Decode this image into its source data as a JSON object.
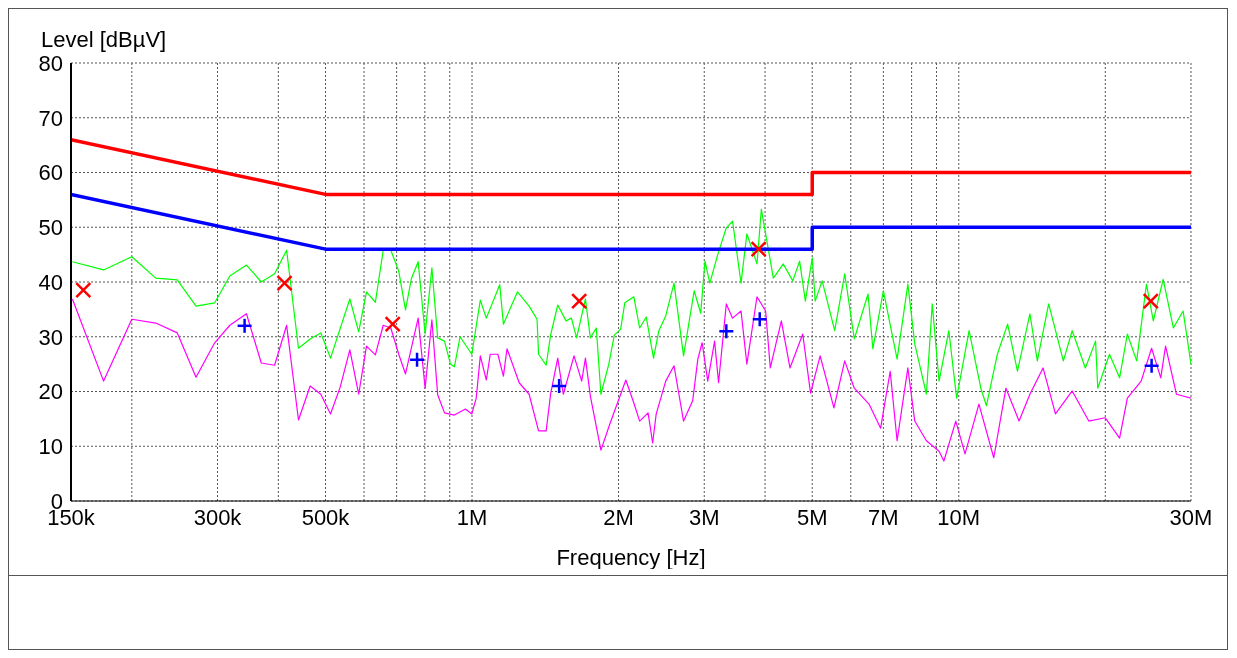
{
  "chart_data": {
    "type": "line",
    "xlabel": "Frequency [Hz]",
    "ylabel": "Level [dBµV]",
    "log": "x",
    "grid": true,
    "legend": false,
    "marker": "none",
    "line_style": "solid",
    "xlim": [
      150000,
      30000000
    ],
    "ylim": [
      0,
      80
    ],
    "yticks": [
      0,
      10,
      20,
      30,
      40,
      50,
      60,
      70,
      80
    ],
    "xticks": [
      {
        "value": 150000,
        "label": "150k"
      },
      {
        "value": 200000,
        "label": null
      },
      {
        "value": 300000,
        "label": "300k"
      },
      {
        "value": 400000,
        "label": null
      },
      {
        "value": 500000,
        "label": "500k"
      },
      {
        "value": 600000,
        "label": null
      },
      {
        "value": 700000,
        "label": null
      },
      {
        "value": 800000,
        "label": null
      },
      {
        "value": 900000,
        "label": null
      },
      {
        "value": 1000000,
        "label": "1M"
      },
      {
        "value": 2000000,
        "label": "2M"
      },
      {
        "value": 3000000,
        "label": "3M"
      },
      {
        "value": 4000000,
        "label": null
      },
      {
        "value": 5000000,
        "label": "5M"
      },
      {
        "value": 6000000,
        "label": null
      },
      {
        "value": 7000000,
        "label": "7M"
      },
      {
        "value": 8000000,
        "label": null
      },
      {
        "value": 9000000,
        "label": null
      },
      {
        "value": 10000000,
        "label": "10M"
      },
      {
        "value": 20000000,
        "label": null
      },
      {
        "value": 30000000,
        "label": "30M"
      }
    ],
    "series": [
      {
        "color": "#00ff00",
        "x": [
          151000,
          175000,
          200000,
          224000,
          248000,
          271000,
          296000,
          318000,
          344000,
          369000,
          393000,
          416000,
          440000,
          465000,
          489000,
          512000,
          561000,
          585000,
          607000,
          633000,
          657000,
          681000,
          707000,
          730000,
          751000,
          775000,
          801000,
          827000,
          850000,
          878000,
          903000,
          920000,
          945000,
          999000,
          1040000,
          1070000,
          1140000,
          1160000,
          1240000,
          1310000,
          1360000,
          1370000,
          1420000,
          1450000,
          1500000,
          1560000,
          1600000,
          1640000,
          1710000,
          1750000,
          1800000,
          1840000,
          1910000,
          1960000,
          2020000,
          2060000,
          2150000,
          2210000,
          2280000,
          2360000,
          2420000,
          2500000,
          2600000,
          2720000,
          2860000,
          2950000,
          3010000,
          3080000,
          3200000,
          3330000,
          3430000,
          3570000,
          3670000,
          3850000,
          3930000,
          4160000,
          4360000,
          4560000,
          4710000,
          4840000,
          5000000,
          5070000,
          5240000,
          5560000,
          5830000,
          6100000,
          6510000,
          6660000,
          7000000,
          7470000,
          7860000,
          8120000,
          8580000,
          8820000,
          9110000,
          9540000,
          9900000,
          10500000,
          11100000,
          11400000,
          12000000,
          12600000,
          13200000,
          14000000,
          14500000,
          15300000,
          16400000,
          17100000,
          18200000,
          19100000,
          19300000,
          20400000,
          21400000,
          22200000,
          23200000,
          24300000,
          25100000,
          26300000,
          27600000,
          28900000,
          30000000
        ],
        "values": [
          43.7,
          42.2,
          44.6,
          40.7,
          40.4,
          35.6,
          36.2,
          41.1,
          43.1,
          40.0,
          41.5,
          45.8,
          27.9,
          29.6,
          30.7,
          26.1,
          36.9,
          30.9,
          38.2,
          36.3,
          45.8,
          45.8,
          42.0,
          34.9,
          40.7,
          43.7,
          30.5,
          42.6,
          29.8,
          29.2,
          25.0,
          24.5,
          30.0,
          26.8,
          36.7,
          33.4,
          39.5,
          32.3,
          38.2,
          35.6,
          33.2,
          26.8,
          24.8,
          30.3,
          35.8,
          32.9,
          33.4,
          29.8,
          36.9,
          29.8,
          31.6,
          19.5,
          25.0,
          30.3,
          31.4,
          36.2,
          37.3,
          31.6,
          33.6,
          26.1,
          31.1,
          33.8,
          39.8,
          26.5,
          38.4,
          34.3,
          43.8,
          39.8,
          45.1,
          49.9,
          51.1,
          39.8,
          48.8,
          43.3,
          53.3,
          40.7,
          43.3,
          40.2,
          43.8,
          36.5,
          44.4,
          36.5,
          40.2,
          31.1,
          41.5,
          29.6,
          37.8,
          27.8,
          38.4,
          25.9,
          39.6,
          28.7,
          19.5,
          36.0,
          21.9,
          31.1,
          18.8,
          31.1,
          20.6,
          17.4,
          26.8,
          32.3,
          23.7,
          34.2,
          25.6,
          36.0,
          25.6,
          31.1,
          24.3,
          29.2,
          20.6,
          26.8,
          22.5,
          30.5,
          25.6,
          39.6,
          32.9,
          40.5,
          31.6,
          34.7,
          25.0
        ]
      },
      {
        "color": "#ff00ff",
        "x": [
          151000,
          175000,
          200000,
          224000,
          248000,
          271000,
          296000,
          318000,
          344000,
          369000,
          393000,
          416000,
          440000,
          465000,
          489000,
          512000,
          536000,
          561000,
          585000,
          607000,
          633000,
          657000,
          681000,
          707000,
          730000,
          775000,
          801000,
          827000,
          850000,
          878000,
          920000,
          969000,
          999000,
          1020000,
          1040000,
          1070000,
          1090000,
          1130000,
          1160000,
          1180000,
          1250000,
          1310000,
          1370000,
          1420000,
          1450000,
          1500000,
          1540000,
          1620000,
          1680000,
          1710000,
          1750000,
          1840000,
          1920000,
          2020000,
          2070000,
          2150000,
          2210000,
          2300000,
          2350000,
          2390000,
          2500000,
          2600000,
          2720000,
          2840000,
          2910000,
          2970000,
          3050000,
          3150000,
          3210000,
          3330000,
          3430000,
          3570000,
          3670000,
          3850000,
          4010000,
          4100000,
          4320000,
          4500000,
          4780000,
          4960000,
          5190000,
          5540000,
          5830000,
          6100000,
          6540000,
          6910000,
          7230000,
          7470000,
          7860000,
          8120000,
          8580000,
          9110000,
          9320000,
          9860000,
          10300000,
          11000000,
          11800000,
          12500000,
          13300000,
          14000000,
          14900000,
          15800000,
          17100000,
          18500000,
          20000000,
          21400000,
          22200000,
          23700000,
          24900000,
          26000000,
          26600000,
          28000000,
          30000000
        ],
        "values": [
          36.9,
          21.9,
          33.2,
          32.5,
          30.7,
          22.6,
          28.9,
          32.1,
          34.2,
          25.2,
          24.8,
          32.1,
          14.8,
          21.0,
          19.5,
          15.9,
          20.8,
          27.6,
          19.5,
          28.3,
          26.7,
          32.1,
          31.6,
          26.8,
          23.2,
          33.4,
          20.6,
          33.1,
          19.4,
          16.1,
          15.7,
          16.8,
          15.9,
          18.8,
          26.5,
          22.1,
          26.8,
          26.8,
          22.8,
          27.8,
          21.6,
          19.5,
          12.8,
          12.8,
          19.5,
          26.1,
          19.5,
          26.5,
          21.9,
          26.1,
          19.2,
          9.3,
          14.1,
          19.5,
          22.1,
          17.9,
          14.6,
          16.1,
          10.6,
          15.9,
          21.9,
          24.7,
          14.6,
          18.3,
          25.9,
          28.9,
          21.9,
          29.2,
          21.6,
          36.0,
          33.4,
          34.7,
          25.0,
          37.3,
          34.7,
          24.3,
          32.9,
          24.3,
          30.5,
          19.7,
          26.5,
          17.0,
          25.6,
          20.6,
          17.7,
          13.3,
          23.7,
          11.0,
          24.3,
          14.6,
          11.0,
          9.1,
          7.3,
          14.6,
          8.6,
          17.7,
          7.9,
          20.6,
          14.6,
          19.5,
          24.3,
          15.9,
          20.1,
          14.6,
          15.2,
          11.5,
          18.8,
          21.9,
          27.9,
          22.5,
          28.3,
          19.5,
          18.8
        ]
      },
      {
        "color": "#ff0000",
        "x": [
          150000,
          500000,
          5000000,
          5000000,
          30000000
        ],
        "values": [
          66,
          56,
          56,
          60,
          60
        ]
      },
      {
        "color": "#0000ff",
        "x": [
          150000,
          500000,
          5000000,
          5000000,
          30000000
        ],
        "values": [
          56,
          46,
          46,
          50,
          50
        ]
      },
      {
        "type": "scatter",
        "color": "#ff0000",
        "marker": "cross",
        "x": [
          159000,
          412000,
          687000,
          1660000,
          3880000,
          24800000
        ],
        "values": [
          38.5,
          39.8,
          32.3,
          36.5,
          46.0,
          36.5
        ]
      },
      {
        "type": "scatter",
        "color": "#0000ff",
        "marker": "plus",
        "x": [
          341000,
          771000,
          1510000,
          3330000,
          3900000,
          24900000
        ],
        "values": [
          32.0,
          25.8,
          21.0,
          31.0,
          33.2,
          24.7
        ]
      }
    ]
  }
}
